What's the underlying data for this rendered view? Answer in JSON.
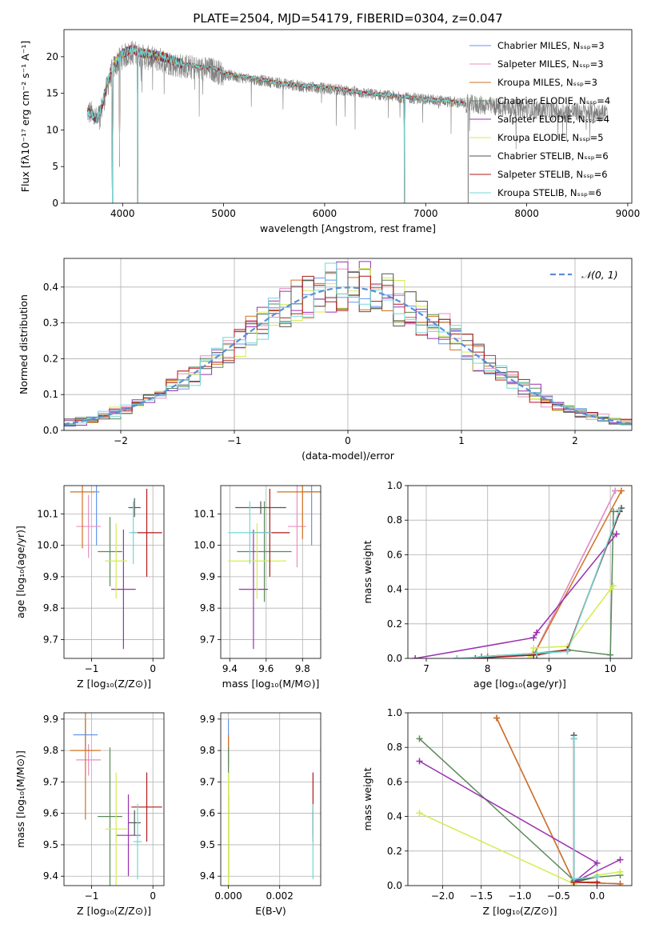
{
  "figure_title": "PLATE=2504, MJD=54179, FIBERID=0304, z=0.047",
  "colors": {
    "Chabrier MILES": "#6495ed",
    "Salpeter MILES": "#e88fc0",
    "Kroupa MILES": "#d07020",
    "Chabrier ELODIE": "#5a8a5a",
    "Salpeter ELODIE": "#9a30b0",
    "Kroupa ELODIE": "#d4ec50",
    "Chabrier STELIB": "#555555",
    "Salpeter STELIB": "#b01818",
    "Kroupa STELIB": "#70d8d8",
    "data": "#808080",
    "normal": "#5b8fd8"
  },
  "chart_data": [
    {
      "type": "line",
      "panel": "spectrum",
      "xlabel": "wavelength [Angstrom, rest frame]",
      "ylabel": "Flux [fλ10⁻¹⁷ erg cm⁻² s⁻¹ A⁻¹]",
      "xlim": [
        3420,
        9040
      ],
      "ylim": [
        0,
        23.7
      ],
      "xticks": [
        4000,
        5000,
        6000,
        7000,
        8000,
        9000
      ],
      "yticks": [
        0,
        5,
        10,
        15,
        20
      ],
      "legend_position": "top-right",
      "legend": [
        "Chabrier MILES, Nₛₛₚ=3",
        "Salpeter MILES, Nₛₛₚ=3",
        "Kroupa MILES, Nₛₛₚ=3",
        "Chabrier ELODIE, Nₛₛₚ=4",
        "Salpeter ELODIE, Nₛₛₚ=4",
        "Kroupa ELODIE, Nₛₛₚ=5",
        "Chabrier STELIB, Nₛₛₚ=6",
        "Salpeter STELIB, Nₛₛₚ=6",
        "Kroupa STELIB, Nₛₛₚ=6"
      ],
      "model_curve": {
        "x": [
          3650,
          3700,
          3750,
          3800,
          3850,
          3900,
          3950,
          4000,
          4100,
          4200,
          4300,
          4400,
          4500,
          4600,
          4700,
          4800,
          4900,
          5000,
          5100,
          5200,
          5300,
          5400,
          5500,
          5600,
          5700,
          5800,
          5900,
          6000,
          6200,
          6400,
          6600,
          6800,
          7000,
          7200,
          7400
        ],
        "y": [
          12.5,
          12.0,
          11.5,
          13.5,
          16.5,
          18.5,
          19.5,
          20.5,
          21.0,
          20.5,
          20.2,
          20.0,
          19.5,
          19.0,
          18.8,
          18.5,
          18.5,
          17.8,
          17.5,
          17.3,
          17.0,
          16.8,
          16.5,
          16.3,
          16.2,
          16.0,
          16.0,
          15.8,
          15.5,
          15.0,
          14.8,
          14.5,
          14.2,
          14.0,
          13.5
        ]
      },
      "data_curve": {
        "x": [
          3650,
          3700,
          3750,
          3800,
          3850,
          3900,
          3950,
          4000,
          4100,
          4200,
          4300,
          4400,
          4500,
          4600,
          4700,
          4800,
          4900,
          5000,
          5200,
          5400,
          5600,
          5800,
          6000,
          6200,
          6400,
          6600,
          6800,
          7000,
          7200,
          7400,
          7600,
          7800,
          8000,
          8200,
          8400,
          8600,
          8800
        ],
        "y": [
          12.5,
          12.2,
          11.3,
          13.3,
          16.0,
          18.2,
          19.3,
          20.0,
          20.6,
          20.0,
          19.7,
          19.5,
          19.0,
          18.7,
          18.5,
          18.3,
          18.2,
          17.6,
          17.1,
          16.7,
          16.3,
          15.9,
          15.7,
          15.4,
          15.0,
          14.7,
          14.4,
          14.2,
          13.9,
          13.6,
          13.3,
          13.0,
          12.8,
          12.6,
          12.5,
          12.4,
          12.3
        ]
      },
      "absorption_dips": [
        {
          "x": 3900,
          "y": 0
        },
        {
          "x": 3970,
          "y": 5
        },
        {
          "x": 4150,
          "y": 0
        },
        {
          "x": 6790,
          "y": 0
        },
        {
          "x": 7420,
          "y": 0
        }
      ]
    },
    {
      "type": "histogram",
      "panel": "residuals",
      "xlabel": "(data-model)/error",
      "ylabel": "Normed distribution",
      "xlim": [
        -2.5,
        2.5
      ],
      "ylim": [
        0,
        0.48
      ],
      "xticks": [
        -2,
        -1,
        0,
        1,
        2
      ],
      "yticks": [
        0.0,
        0.1,
        0.2,
        0.3,
        0.4
      ],
      "legend": "𝒩(0, 1)",
      "legend_position": "top-right",
      "bin_width": 0.1,
      "normal_curve": {
        "mu": 0,
        "sigma": 1
      }
    },
    {
      "type": "scatter",
      "panel": "age-vs-Z",
      "xlabel": "Z [log₁₀(Z/Z⊙)]",
      "ylabel": "age  [log₁₀(age/yr)]",
      "xlim": [
        -1.45,
        0.18
      ],
      "ylim": [
        9.64,
        10.19
      ],
      "xticks": [
        -1,
        0
      ],
      "yticks": [
        9.7,
        9.8,
        9.9,
        10.0,
        10.1
      ],
      "points": [
        {
          "model": "Chabrier MILES",
          "x": -0.92,
          "y": 10.17,
          "xerr": 0.05,
          "yerr": 0.17
        },
        {
          "model": "Salpeter MILES",
          "x": -1.05,
          "y": 10.06,
          "xerr": 0.2,
          "yerr": 0.1
        },
        {
          "model": "Kroupa MILES",
          "x": -1.15,
          "y": 10.17,
          "xerr": 0.2,
          "yerr": 0.18
        },
        {
          "model": "Chabrier ELODIE",
          "x": -0.7,
          "y": 9.98,
          "xerr": 0.2,
          "yerr": 0.11
        },
        {
          "model": "Salpeter ELODIE",
          "x": -0.48,
          "y": 9.86,
          "xerr": 0.2,
          "yerr": 0.19
        },
        {
          "model": "Kroupa ELODIE",
          "x": -0.6,
          "y": 9.95,
          "xerr": 0.18,
          "yerr": 0.12
        },
        {
          "model": "Chabrier STELIB",
          "x": -0.3,
          "y": 10.12,
          "xerr": 0.1,
          "yerr": 0.03
        },
        {
          "model": "Salpeter STELIB",
          "x": -0.1,
          "y": 10.04,
          "xerr": 0.25,
          "yerr": 0.14
        },
        {
          "model": "Kroupa STELIB",
          "x": -0.32,
          "y": 10.04,
          "xerr": 0.07,
          "yerr": 0.1
        }
      ]
    },
    {
      "type": "scatter",
      "panel": "age-vs-mass",
      "xlabel": "mass [log₁₀(M/M⊙)]",
      "ylabel": "",
      "xlim": [
        9.35,
        9.9
      ],
      "ylim": [
        9.64,
        10.19
      ],
      "xticks": [
        9.4,
        9.6,
        9.8
      ],
      "yticks": [
        9.7,
        9.8,
        9.9,
        10.0,
        10.1
      ],
      "points": [
        {
          "model": "Chabrier MILES",
          "x": 9.85,
          "y": 10.17,
          "xerr": 0.05,
          "yerr": 0.17
        },
        {
          "model": "Salpeter MILES",
          "x": 9.77,
          "y": 10.06,
          "xerr": 0.05,
          "yerr": 0.13
        },
        {
          "model": "Kroupa MILES",
          "x": 9.8,
          "y": 10.17,
          "xerr": 0.14,
          "yerr": 0.15
        },
        {
          "model": "Chabrier ELODIE",
          "x": 9.59,
          "y": 9.98,
          "xerr": 0.15,
          "yerr": 0.16
        },
        {
          "model": "Salpeter ELODIE",
          "x": 9.53,
          "y": 9.86,
          "xerr": 0.08,
          "yerr": 0.19
        },
        {
          "model": "Kroupa ELODIE",
          "x": 9.55,
          "y": 9.95,
          "xerr": 0.16,
          "yerr": 0.12
        },
        {
          "model": "Chabrier STELIB",
          "x": 9.57,
          "y": 10.12,
          "xerr": 0.14,
          "yerr": 0.02
        },
        {
          "model": "Salpeter STELIB",
          "x": 9.62,
          "y": 10.04,
          "xerr": 0.11,
          "yerr": 0.14
        },
        {
          "model": "Kroupa STELIB",
          "x": 9.51,
          "y": 10.04,
          "xerr": 0.12,
          "yerr": 0.1
        }
      ]
    },
    {
      "type": "line",
      "panel": "mass-weight-vs-age",
      "xlabel": "age  [log₁₀(age/yr)]",
      "ylabel": "mass weight",
      "xlim": [
        6.7,
        10.35
      ],
      "ylim": [
        0,
        1
      ],
      "xticks": [
        7,
        8,
        9,
        10
      ],
      "yticks": [
        0.0,
        0.2,
        0.4,
        0.6,
        0.8,
        1.0
      ],
      "series": [
        {
          "model": "Chabrier MILES",
          "x": [
            8.0,
            8.75,
            10.08
          ],
          "y": [
            0.01,
            0.02,
            0.97
          ]
        },
        {
          "model": "Salpeter MILES",
          "x": [
            8.0,
            8.75,
            10.08
          ],
          "y": [
            0.01,
            0.02,
            0.97
          ]
        },
        {
          "model": "Kroupa MILES",
          "x": [
            8.0,
            8.75,
            10.18
          ],
          "y": [
            0.01,
            0.02,
            0.97
          ]
        },
        {
          "model": "Chabrier ELODIE",
          "x": [
            7.9,
            8.8,
            9.3,
            10.0,
            10.05
          ],
          "y": [
            0.01,
            0.03,
            0.05,
            0.02,
            0.85
          ]
        },
        {
          "model": "Salpeter ELODIE",
          "x": [
            6.82,
            8.75,
            8.8,
            10.1
          ],
          "y": [
            0.0,
            0.12,
            0.15,
            0.72
          ]
        },
        {
          "model": "Kroupa ELODIE",
          "x": [
            8.7,
            8.75,
            9.3,
            10.0,
            10.05
          ],
          "y": [
            0.01,
            0.06,
            0.07,
            0.4,
            0.42
          ]
        },
        {
          "model": "Chabrier STELIB",
          "x": [
            7.5,
            8.8,
            9.3,
            10.18
          ],
          "y": [
            0.0,
            0.02,
            0.05,
            0.87
          ]
        },
        {
          "model": "Salpeter STELIB",
          "x": [
            7.8,
            8.75,
            9.3,
            10.15
          ],
          "y": [
            0.0,
            0.02,
            0.05,
            0.85
          ]
        },
        {
          "model": "Kroupa STELIB",
          "x": [
            7.5,
            8.8,
            9.3,
            10.15
          ],
          "y": [
            0.0,
            0.03,
            0.04,
            0.86
          ]
        }
      ]
    },
    {
      "type": "scatter",
      "panel": "mass-vs-Z",
      "xlabel": "Z [log₁₀(Z/Z⊙)]",
      "ylabel": "mass [log₁₀(M/M⊙)]",
      "xlim": [
        -1.45,
        0.18
      ],
      "ylim": [
        9.37,
        9.92
      ],
      "xticks": [
        -1,
        0
      ],
      "yticks": [
        9.4,
        9.5,
        9.6,
        9.7,
        9.8,
        9.9
      ],
      "points": [
        {
          "model": "Chabrier MILES",
          "x": -1.1,
          "y": 9.85,
          "xerr": 0.2,
          "yerr": 0.05
        },
        {
          "model": "Salpeter MILES",
          "x": -1.05,
          "y": 9.77,
          "xerr": 0.2,
          "yerr": 0.05
        },
        {
          "model": "Kroupa MILES",
          "x": -1.1,
          "y": 9.8,
          "xerr": 0.25,
          "yerr": 0.22
        },
        {
          "model": "Chabrier ELODIE",
          "x": -0.7,
          "y": 9.59,
          "xerr": 0.2,
          "yerr": 0.22
        },
        {
          "model": "Salpeter ELODIE",
          "x": -0.4,
          "y": 9.53,
          "xerr": 0.2,
          "yerr": 0.13
        },
        {
          "model": "Kroupa ELODIE",
          "x": -0.6,
          "y": 9.55,
          "xerr": 0.18,
          "yerr": 0.18
        },
        {
          "model": "Chabrier STELIB",
          "x": -0.3,
          "y": 9.57,
          "xerr": 0.1,
          "yerr": 0.04
        },
        {
          "model": "Salpeter STELIB",
          "x": -0.1,
          "y": 9.62,
          "xerr": 0.25,
          "yerr": 0.11
        },
        {
          "model": "Kroupa STELIB",
          "x": -0.25,
          "y": 9.51,
          "xerr": 0.07,
          "yerr": 0.12
        }
      ]
    },
    {
      "type": "scatter",
      "panel": "mass-vs-ebv",
      "xlabel": "E(B-V)",
      "ylabel": "",
      "xlim": [
        -0.0003,
        0.0036
      ],
      "ylim": [
        9.37,
        9.92
      ],
      "xticks": [
        0.0,
        0.002
      ],
      "xtick_labels": [
        "0.000",
        "0.002"
      ],
      "yticks": [
        9.4,
        9.5,
        9.6,
        9.7,
        9.8,
        9.9
      ],
      "points": [
        {
          "model": "Chabrier MILES",
          "x": 0.0,
          "y": 9.85,
          "yerr": 0.05
        },
        {
          "model": "Salpeter MILES",
          "x": 0.0,
          "y": 9.77,
          "yerr": 0.05
        },
        {
          "model": "Kroupa MILES",
          "x": 0.0,
          "y": 9.8,
          "yerr": 0.05
        },
        {
          "model": "Chabrier ELODIE",
          "x": 0.0,
          "y": 9.59,
          "yerr": 0.22
        },
        {
          "model": "Salpeter ELODIE",
          "x": 0.0,
          "y": 9.53,
          "yerr": 0.13
        },
        {
          "model": "Kroupa ELODIE",
          "x": 0.0,
          "y": 9.55,
          "yerr": 0.18
        },
        {
          "model": "Chabrier STELIB",
          "x": 0.0033,
          "y": 9.57,
          "yerr": 0.04
        },
        {
          "model": "Salpeter STELIB",
          "x": 0.0033,
          "y": 9.62,
          "yerr": 0.11
        },
        {
          "model": "Kroupa STELIB",
          "x": 0.0033,
          "y": 9.51,
          "yerr": 0.12
        }
      ]
    },
    {
      "type": "line",
      "panel": "mass-weight-vs-Z",
      "xlabel": "Z [log₁₀(Z/Z⊙)]",
      "ylabel": "mass weight",
      "xlim": [
        -2.45,
        0.45
      ],
      "ylim": [
        0,
        1
      ],
      "xticks": [
        -2.0,
        -1.5,
        -1.0,
        -0.5,
        0.0
      ],
      "yticks": [
        0.0,
        0.2,
        0.4,
        0.6,
        0.8,
        1.0
      ],
      "series": [
        {
          "model": "Chabrier MILES",
          "x": [
            -1.3,
            -0.3,
            0.3
          ],
          "y": [
            0.97,
            0.02,
            0.01
          ]
        },
        {
          "model": "Salpeter MILES",
          "x": [
            -1.3,
            -0.3,
            0.3
          ],
          "y": [
            0.97,
            0.02,
            0.01
          ]
        },
        {
          "model": "Kroupa MILES",
          "x": [
            -1.3,
            -0.3,
            0.3
          ],
          "y": [
            0.97,
            0.02,
            0.01
          ]
        },
        {
          "model": "Chabrier ELODIE",
          "x": [
            -2.3,
            -0.3,
            0.0,
            0.3
          ],
          "y": [
            0.85,
            0.03,
            0.05,
            0.06
          ]
        },
        {
          "model": "Salpeter ELODIE",
          "x": [
            -2.3,
            0.0,
            -0.3,
            0.3
          ],
          "y": [
            0.72,
            0.13,
            0.02,
            0.15
          ]
        },
        {
          "model": "Kroupa ELODIE",
          "x": [
            -2.3,
            -0.3,
            0.0,
            0.3
          ],
          "y": [
            0.42,
            0.01,
            0.06,
            0.08
          ]
        },
        {
          "model": "Chabrier STELIB",
          "x": [
            -0.3,
            -0.3,
            0.0
          ],
          "y": [
            0.87,
            0.02,
            0.05
          ]
        },
        {
          "model": "Salpeter STELIB",
          "x": [
            -0.3,
            -0.3,
            0.0
          ],
          "y": [
            0.85,
            0.02,
            0.02
          ]
        },
        {
          "model": "Kroupa STELIB",
          "x": [
            -0.3,
            -0.3,
            0.0
          ],
          "y": [
            0.85,
            0.04,
            0.05
          ]
        }
      ]
    }
  ]
}
